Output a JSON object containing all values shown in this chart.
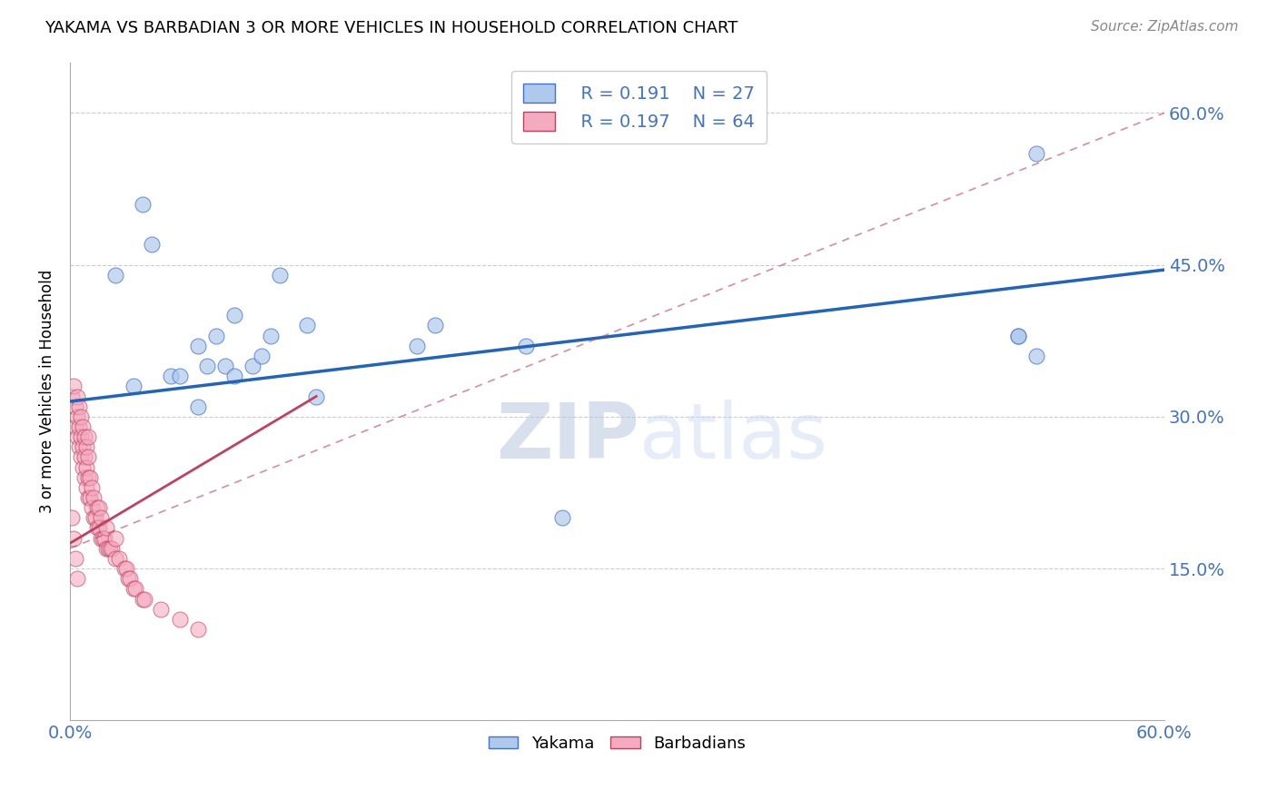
{
  "title": "YAKAMA VS BARBADIAN 3 OR MORE VEHICLES IN HOUSEHOLD CORRELATION CHART",
  "source": "Source: ZipAtlas.com",
  "ylabel": "3 or more Vehicles in Household",
  "xlim": [
    0.0,
    0.6
  ],
  "ylim": [
    0.0,
    0.65
  ],
  "xtick_vals": [
    0.0,
    0.15,
    0.3,
    0.45,
    0.6
  ],
  "xtick_labels": [
    "0.0%",
    "",
    "",
    "",
    "60.0%"
  ],
  "ytick_vals": [
    0.15,
    0.3,
    0.45,
    0.6
  ],
  "ytick_labels": [
    "15.0%",
    "30.0%",
    "45.0%",
    "60.0%"
  ],
  "legend_r_yakama": "R = 0.191",
  "legend_n_yakama": "N = 27",
  "legend_r_barbadian": "R = 0.197",
  "legend_n_barbadian": "N = 64",
  "yakama_color": "#AEC9EC",
  "yakama_edge": "#4472C4",
  "barbadian_color": "#F4AABF",
  "barbadian_edge": "#C04060",
  "line_yakama_color": "#2464B4",
  "line_barbadian_color": "#C04060",
  "watermark_zip": "ZIP",
  "watermark_atlas": "atlas",
  "legend_color": "#4472C4",
  "yakama_x": [
    0.025,
    0.04,
    0.045,
    0.07,
    0.075,
    0.08,
    0.085,
    0.09,
    0.09,
    0.1,
    0.105,
    0.11,
    0.115,
    0.13,
    0.135,
    0.19,
    0.2,
    0.25,
    0.52,
    0.53,
    0.52,
    0.53,
    0.035,
    0.055,
    0.06,
    0.07,
    0.27
  ],
  "yakama_y": [
    0.44,
    0.51,
    0.47,
    0.37,
    0.35,
    0.38,
    0.35,
    0.4,
    0.34,
    0.35,
    0.36,
    0.38,
    0.44,
    0.39,
    0.32,
    0.37,
    0.39,
    0.37,
    0.38,
    0.36,
    0.38,
    0.56,
    0.33,
    0.34,
    0.34,
    0.31,
    0.2
  ],
  "barbadian_x": [
    0.001,
    0.002,
    0.003,
    0.003,
    0.004,
    0.004,
    0.004,
    0.005,
    0.005,
    0.005,
    0.006,
    0.006,
    0.006,
    0.007,
    0.007,
    0.007,
    0.008,
    0.008,
    0.008,
    0.009,
    0.009,
    0.009,
    0.01,
    0.01,
    0.01,
    0.01,
    0.011,
    0.011,
    0.012,
    0.012,
    0.013,
    0.013,
    0.014,
    0.015,
    0.015,
    0.016,
    0.016,
    0.017,
    0.017,
    0.018,
    0.019,
    0.02,
    0.02,
    0.021,
    0.022,
    0.023,
    0.025,
    0.025,
    0.027,
    0.03,
    0.031,
    0.032,
    0.033,
    0.035,
    0.036,
    0.04,
    0.041,
    0.05,
    0.06,
    0.07,
    0.001,
    0.002,
    0.003,
    0.004
  ],
  "barbadian_y": [
    0.32,
    0.33,
    0.29,
    0.31,
    0.28,
    0.3,
    0.32,
    0.27,
    0.29,
    0.31,
    0.26,
    0.28,
    0.3,
    0.25,
    0.27,
    0.29,
    0.24,
    0.26,
    0.28,
    0.23,
    0.25,
    0.27,
    0.22,
    0.24,
    0.26,
    0.28,
    0.22,
    0.24,
    0.21,
    0.23,
    0.2,
    0.22,
    0.2,
    0.19,
    0.21,
    0.19,
    0.21,
    0.18,
    0.2,
    0.18,
    0.18,
    0.17,
    0.19,
    0.17,
    0.17,
    0.17,
    0.16,
    0.18,
    0.16,
    0.15,
    0.15,
    0.14,
    0.14,
    0.13,
    0.13,
    0.12,
    0.12,
    0.11,
    0.1,
    0.09,
    0.2,
    0.18,
    0.16,
    0.14
  ],
  "yakama_line_x": [
    0.0,
    0.6
  ],
  "yakama_line_y": [
    0.315,
    0.445
  ],
  "barbadian_line_x": [
    0.0,
    0.6
  ],
  "barbadian_line_y": [
    0.17,
    0.6
  ],
  "barbadian_solid_line_x": [
    0.0,
    0.13
  ],
  "barbadian_solid_line_y": [
    0.17,
    0.32
  ]
}
